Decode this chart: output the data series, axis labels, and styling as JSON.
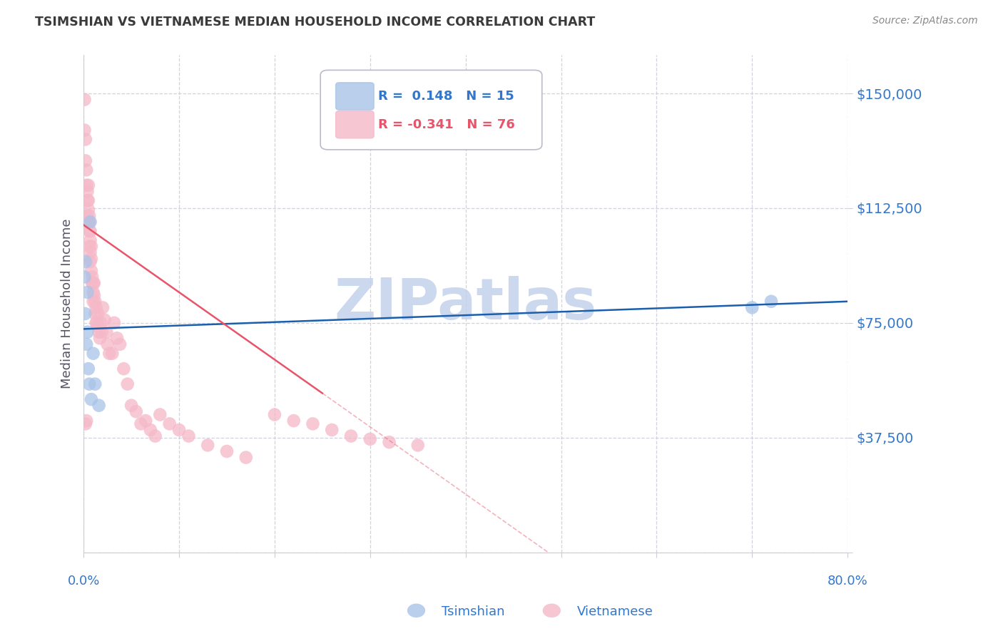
{
  "title": "TSIMSHIAN VS VIETNAMESE MEDIAN HOUSEHOLD INCOME CORRELATION CHART",
  "source": "Source: ZipAtlas.com",
  "ylabel": "Median Household Income",
  "yticks": [
    0,
    37500,
    75000,
    112500,
    150000
  ],
  "ytick_labels": [
    "",
    "$37,500",
    "$75,000",
    "$112,500",
    "$150,000"
  ],
  "ylim": [
    0,
    162500
  ],
  "xlim": [
    0.0,
    0.8
  ],
  "watermark": "ZIPatlas",
  "legend": {
    "tsimshian_label": "R =  0.148   N = 15",
    "vietnamese_label": "R = -0.341   N = 76"
  },
  "tsimshian_x": [
    0.001,
    0.0015,
    0.002,
    0.003,
    0.004,
    0.004,
    0.005,
    0.006,
    0.007,
    0.008,
    0.01,
    0.012,
    0.016,
    0.7,
    0.72
  ],
  "tsimshian_y": [
    90000,
    78000,
    95000,
    68000,
    85000,
    72000,
    60000,
    55000,
    108000,
    50000,
    65000,
    55000,
    48000,
    80000,
    82000
  ],
  "vietnamese_x": [
    0.001,
    0.001,
    0.002,
    0.002,
    0.002,
    0.003,
    0.003,
    0.003,
    0.004,
    0.004,
    0.004,
    0.005,
    0.005,
    0.005,
    0.005,
    0.006,
    0.006,
    0.006,
    0.006,
    0.007,
    0.007,
    0.007,
    0.007,
    0.008,
    0.008,
    0.008,
    0.009,
    0.009,
    0.01,
    0.01,
    0.01,
    0.011,
    0.011,
    0.012,
    0.012,
    0.013,
    0.013,
    0.014,
    0.015,
    0.015,
    0.016,
    0.017,
    0.018,
    0.019,
    0.02,
    0.022,
    0.024,
    0.025,
    0.027,
    0.03,
    0.032,
    0.035,
    0.038,
    0.042,
    0.046,
    0.05,
    0.055,
    0.06,
    0.065,
    0.07,
    0.075,
    0.08,
    0.09,
    0.1,
    0.11,
    0.13,
    0.15,
    0.17,
    0.2,
    0.22,
    0.24,
    0.26,
    0.28,
    0.3,
    0.32,
    0.35
  ],
  "vietnamese_y": [
    148000,
    138000,
    135000,
    128000,
    42000,
    125000,
    120000,
    43000,
    118000,
    115000,
    110000,
    120000,
    115000,
    112000,
    108000,
    110000,
    108000,
    105000,
    100000,
    105000,
    102000,
    98000,
    95000,
    100000,
    96000,
    92000,
    90000,
    88000,
    88000,
    85000,
    82000,
    88000,
    84000,
    82000,
    78000,
    80000,
    75000,
    75000,
    78000,
    74000,
    72000,
    70000,
    75000,
    72000,
    80000,
    76000,
    72000,
    68000,
    65000,
    65000,
    75000,
    70000,
    68000,
    60000,
    55000,
    48000,
    46000,
    42000,
    43000,
    40000,
    38000,
    45000,
    42000,
    40000,
    38000,
    35000,
    33000,
    31000,
    45000,
    43000,
    42000,
    40000,
    38000,
    37000,
    36000,
    35000
  ],
  "tsimshian_color": "#a8c4e8",
  "vietnamese_color": "#f5b8c8",
  "line_blue": "#1a5fad",
  "line_pink": "#e8556a",
  "background_color": "#ffffff",
  "grid_color": "#ccccdd",
  "title_color": "#3a3a3a",
  "axis_label_color": "#3377cc",
  "watermark_color": "#ccd8ee"
}
